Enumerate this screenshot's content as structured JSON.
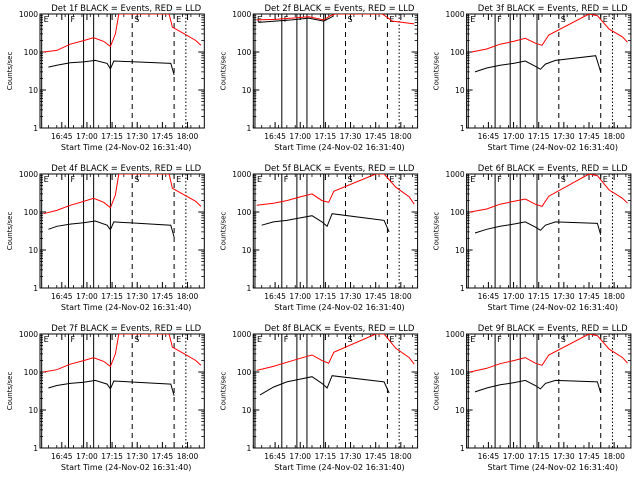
{
  "chart_data": {
    "type": "line",
    "xlabel": "Start Time (24-Nov-02 16:31:40)",
    "ylabel": "Counts/sec",
    "y_scale": "log",
    "ylim": [
      1,
      1000
    ],
    "y_ticks": [
      "1",
      "10",
      "100",
      "1000"
    ],
    "x_ticks": [
      "16:45",
      "17:00",
      "17:15",
      "17:30",
      "17:45",
      "18:00"
    ],
    "legend": "none",
    "grid": false,
    "panels": [
      {
        "title": "Det 1f BLACK = Events, RED = LLD",
        "markers": [
          {
            "label": "E",
            "time": "16:33"
          },
          {
            "label": "F",
            "time": "16:49"
          },
          {
            "label": "S",
            "time": "17:27"
          },
          {
            "label": "E",
            "time": "17:52"
          }
        ],
        "events": {
          "x": [
            "16:37",
            "16:42",
            "16:50",
            "16:58",
            "17:05",
            "17:12",
            "17:14",
            "17:16",
            "17:27",
            "17:28",
            "17:44",
            "17:49",
            "17:50",
            "17:52"
          ],
          "y": [
            40,
            45,
            52,
            55,
            60,
            50,
            36,
            58,
            0,
            0,
            0,
            0,
            50,
            25
          ]
        },
        "lld": {
          "x": [
            "16:34",
            "16:42",
            "16:50",
            "16:58",
            "17:04",
            "17:10",
            "17:14",
            "17:17",
            "17:19",
            "17:45",
            "17:49",
            "17:51",
            "17:57",
            "18:05",
            "18:08"
          ],
          "y": [
            100,
            110,
            160,
            200,
            240,
            190,
            140,
            300,
            1000,
            1000,
            1000,
            450,
            320,
            200,
            150
          ]
        }
      },
      {
        "title": "Det 2f BLACK = Events, RED = LLD",
        "markers": [
          {
            "label": "E",
            "time": "16:33"
          },
          {
            "label": "F",
            "time": "16:49"
          },
          {
            "label": "S",
            "time": "17:27"
          },
          {
            "label": "E",
            "time": "17:52"
          }
        ],
        "events": {
          "x": [
            "16:35",
            "16:45",
            "16:55",
            "17:05",
            "17:14",
            "17:18",
            "17:20"
          ],
          "y": [
            600,
            650,
            700,
            780,
            650,
            800,
            900
          ]
        },
        "lld": {
          "x": [
            "16:34",
            "16:45",
            "16:55",
            "17:05",
            "17:14",
            "17:18",
            "17:21",
            "17:45",
            "17:49",
            "17:55",
            "18:08"
          ],
          "y": [
            700,
            720,
            780,
            850,
            700,
            900,
            1000,
            1000,
            1000,
            650,
            550
          ]
        }
      },
      {
        "title": "Det 3f BLACK = Events, RED = LLD",
        "markers": [
          {
            "label": "E",
            "time": "16:33"
          },
          {
            "label": "F",
            "time": "16:49"
          },
          {
            "label": "S",
            "time": "17:27"
          },
          {
            "label": "E",
            "time": "17:52"
          }
        ],
        "events": {
          "x": [
            "16:37",
            "16:44",
            "16:52",
            "17:00",
            "17:07",
            "17:13",
            "17:16",
            "17:19",
            "17:25",
            "17:49",
            "17:52"
          ],
          "y": [
            30,
            38,
            45,
            50,
            58,
            42,
            35,
            48,
            60,
            80,
            30
          ]
        },
        "lld": {
          "x": [
            "16:35",
            "16:44",
            "16:52",
            "17:00",
            "17:07",
            "17:13",
            "17:17",
            "17:21",
            "17:45",
            "17:50",
            "17:57",
            "18:05",
            "18:08"
          ],
          "y": [
            100,
            120,
            160,
            190,
            230,
            170,
            150,
            280,
            1000,
            900,
            400,
            250,
            180
          ]
        }
      },
      {
        "title": "Det 4f BLACK = Events, RED = LLD",
        "markers": [
          {
            "label": "E",
            "time": "16:33"
          },
          {
            "label": "F",
            "time": "16:49"
          },
          {
            "label": "S",
            "time": "17:27"
          },
          {
            "label": "E",
            "time": "17:52"
          }
        ],
        "events": {
          "x": [
            "16:37",
            "16:42",
            "16:50",
            "16:58",
            "17:05",
            "17:12",
            "17:14",
            "17:16",
            "17:50",
            "17:52"
          ],
          "y": [
            35,
            42,
            48,
            52,
            58,
            45,
            34,
            55,
            45,
            22
          ]
        },
        "lld": {
          "x": [
            "16:34",
            "16:42",
            "16:50",
            "16:58",
            "17:04",
            "17:10",
            "17:14",
            "17:17",
            "17:19",
            "17:45",
            "17:49",
            "17:51",
            "17:57",
            "18:05",
            "18:08"
          ],
          "y": [
            90,
            110,
            150,
            190,
            230,
            180,
            130,
            280,
            1000,
            1000,
            1000,
            420,
            300,
            190,
            140
          ]
        }
      },
      {
        "title": "Det 5f BLACK = Events, RED = LLD",
        "markers": [
          {
            "label": "E",
            "time": "16:33"
          },
          {
            "label": "F",
            "time": "16:49"
          },
          {
            "label": "S",
            "time": "17:27"
          },
          {
            "label": "E",
            "time": "17:52"
          }
        ],
        "events": {
          "x": [
            "16:37",
            "16:44",
            "16:52",
            "17:00",
            "17:07",
            "17:13",
            "17:16",
            "17:19",
            "17:50",
            "17:53"
          ],
          "y": [
            45,
            55,
            60,
            70,
            80,
            55,
            42,
            90,
            60,
            30
          ]
        },
        "lld": {
          "x": [
            "16:34",
            "16:44",
            "16:52",
            "17:00",
            "17:07",
            "17:13",
            "17:17",
            "17:20",
            "17:45",
            "17:50",
            "17:57",
            "18:05",
            "18:08"
          ],
          "y": [
            150,
            170,
            200,
            250,
            300,
            200,
            180,
            350,
            1000,
            1000,
            450,
            250,
            160
          ]
        }
      },
      {
        "title": "Det 6f BLACK = Events, RED = LLD",
        "markers": [
          {
            "label": "E",
            "time": "16:33"
          },
          {
            "label": "F",
            "time": "16:49"
          },
          {
            "label": "S",
            "time": "17:27"
          },
          {
            "label": "E",
            "time": "17:52"
          }
        ],
        "events": {
          "x": [
            "16:37",
            "16:44",
            "16:52",
            "17:00",
            "17:07",
            "17:13",
            "17:16",
            "17:19",
            "17:25",
            "17:50",
            "17:52"
          ],
          "y": [
            28,
            35,
            42,
            48,
            55,
            40,
            33,
            45,
            55,
            50,
            25
          ]
        },
        "lld": {
          "x": [
            "16:34",
            "16:44",
            "16:52",
            "17:00",
            "17:07",
            "17:13",
            "17:17",
            "17:21",
            "17:45",
            "17:50",
            "17:57",
            "18:05",
            "18:08"
          ],
          "y": [
            100,
            120,
            160,
            190,
            220,
            160,
            140,
            260,
            1000,
            900,
            380,
            230,
            170
          ]
        }
      },
      {
        "title": "Det 7f BLACK = Events, RED = LLD",
        "markers": [
          {
            "label": "E",
            "time": "16:33"
          },
          {
            "label": "F",
            "time": "16:49"
          },
          {
            "label": "S",
            "time": "17:27"
          },
          {
            "label": "E",
            "time": "17:52"
          }
        ],
        "events": {
          "x": [
            "16:37",
            "16:42",
            "16:50",
            "16:58",
            "17:05",
            "17:12",
            "17:14",
            "17:16",
            "17:50",
            "17:52"
          ],
          "y": [
            38,
            44,
            50,
            54,
            60,
            48,
            36,
            58,
            48,
            24
          ]
        },
        "lld": {
          "x": [
            "16:34",
            "16:42",
            "16:50",
            "16:58",
            "17:04",
            "17:10",
            "17:14",
            "17:17",
            "17:19",
            "17:45",
            "17:49",
            "17:51",
            "17:57",
            "18:05",
            "18:08"
          ],
          "y": [
            100,
            115,
            160,
            200,
            240,
            190,
            140,
            300,
            1000,
            1000,
            1000,
            450,
            320,
            200,
            150
          ]
        }
      },
      {
        "title": "Det 8f BLACK = Events, RED = LLD",
        "markers": [
          {
            "label": "E",
            "time": "16:33"
          },
          {
            "label": "F",
            "time": "16:49"
          },
          {
            "label": "S",
            "time": "17:27"
          },
          {
            "label": "E",
            "time": "17:52"
          }
        ],
        "events": {
          "x": [
            "16:36",
            "16:44",
            "16:52",
            "17:00",
            "17:07",
            "17:13",
            "17:16",
            "17:19",
            "17:50",
            "17:53"
          ],
          "y": [
            25,
            40,
            55,
            65,
            75,
            50,
            38,
            80,
            55,
            28
          ]
        },
        "lld": {
          "x": [
            "16:34",
            "16:44",
            "16:52",
            "17:00",
            "17:07",
            "17:13",
            "17:17",
            "17:20",
            "17:45",
            "17:50",
            "17:57",
            "18:05",
            "18:08"
          ],
          "y": [
            110,
            140,
            180,
            230,
            280,
            200,
            170,
            330,
            1000,
            1000,
            420,
            240,
            160
          ]
        }
      },
      {
        "title": "Det 9f BLACK = Events, RED = LLD",
        "markers": [
          {
            "label": "E",
            "time": "16:33"
          },
          {
            "label": "F",
            "time": "16:49"
          },
          {
            "label": "S",
            "time": "17:27"
          },
          {
            "label": "E",
            "time": "17:52"
          }
        ],
        "events": {
          "x": [
            "16:37",
            "16:44",
            "16:52",
            "17:00",
            "17:07",
            "17:13",
            "17:16",
            "17:19",
            "17:25",
            "17:50",
            "17:52"
          ],
          "y": [
            30,
            38,
            46,
            52,
            60,
            44,
            36,
            50,
            60,
            55,
            28
          ]
        },
        "lld": {
          "x": [
            "16:34",
            "16:44",
            "16:52",
            "17:00",
            "17:07",
            "17:13",
            "17:17",
            "17:21",
            "17:45",
            "17:50",
            "17:57",
            "18:05",
            "18:08"
          ],
          "y": [
            100,
            125,
            165,
            200,
            240,
            170,
            150,
            280,
            1000,
            900,
            400,
            240,
            170
          ]
        }
      }
    ]
  },
  "colors": {
    "events": "#000000",
    "lld": "#ff0000",
    "axes": "#000000",
    "background": "#ffffff"
  }
}
